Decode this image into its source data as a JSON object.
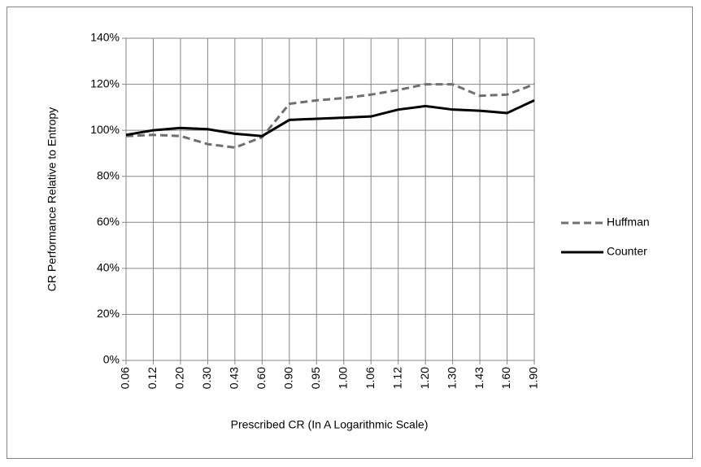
{
  "chart_data": {
    "type": "line",
    "x_label": "Prescribed CR (In A Logarithmic Scale)",
    "y_label": "CR Performance Relative to Entropy",
    "categories": [
      "0.06",
      "0.12",
      "0.20",
      "0.30",
      "0.43",
      "0.60",
      "0.90",
      "0.95",
      "1.00",
      "1.06",
      "1.12",
      "1.20",
      "1.30",
      "1.43",
      "1.60",
      "1.90"
    ],
    "series": [
      {
        "name": "Huffman",
        "color": "#6f6f6f",
        "dash": true,
        "values": [
          97.5,
          98,
          97.5,
          94,
          92.5,
          97,
          111.5,
          113,
          114,
          115.5,
          117.5,
          120,
          120,
          115,
          115.5,
          120
        ]
      },
      {
        "name": "Counter",
        "color": "#000000",
        "dash": false,
        "values": [
          98,
          100,
          101,
          100.5,
          98.5,
          97.5,
          104.5,
          105,
          105.5,
          106,
          109,
          110.5,
          109,
          108.5,
          107.5,
          113
        ]
      }
    ],
    "ylim": [
      0,
      140
    ],
    "yticks": [
      {
        "value": 0,
        "label": "0%"
      },
      {
        "value": 20,
        "label": "20%"
      },
      {
        "value": 40,
        "label": "40%"
      },
      {
        "value": 60,
        "label": "60%"
      },
      {
        "value": 80,
        "label": "80%"
      },
      {
        "value": 100,
        "label": "100%"
      },
      {
        "value": 120,
        "label": "120%"
      },
      {
        "value": 140,
        "label": "140%"
      }
    ],
    "grid": true,
    "legend": "right"
  }
}
